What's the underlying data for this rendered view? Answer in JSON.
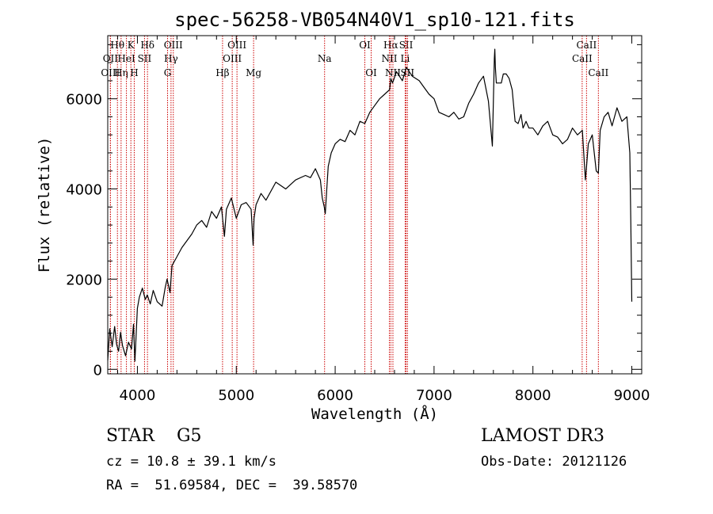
{
  "chart_data": {
    "type": "line",
    "title": "spec-56258-VB054N40V1_sp10-121.fits",
    "xlabel": "Wavelength (Å)",
    "ylabel": "Flux (relative)",
    "xlim": [
      3700,
      9100
    ],
    "ylim": [
      -100,
      7400
    ],
    "xticks": [
      4000,
      5000,
      6000,
      7000,
      8000,
      9000
    ],
    "xtick_labels": [
      "4000",
      "5000",
      "6000",
      "7000",
      "8000",
      "9000"
    ],
    "yticks": [
      0,
      2000,
      4000,
      6000
    ],
    "ytick_labels": [
      "0",
      "2000",
      "4000",
      "6000"
    ],
    "series": [
      {
        "name": "flux",
        "x": [
          3700,
          3720,
          3745,
          3770,
          3790,
          3810,
          3830,
          3850,
          3880,
          3910,
          3940,
          3960,
          3975,
          4000,
          4020,
          4050,
          4080,
          4100,
          4130,
          4160,
          4200,
          4250,
          4280,
          4300,
          4330,
          4350,
          4400,
          4450,
          4500,
          4550,
          4600,
          4650,
          4700,
          4750,
          4800,
          4850,
          4880,
          4900,
          4950,
          5000,
          5050,
          5100,
          5150,
          5170,
          5180,
          5200,
          5250,
          5300,
          5400,
          5500,
          5600,
          5700,
          5750,
          5800,
          5850,
          5870,
          5890,
          5900,
          5915,
          5930,
          5960,
          6000,
          6050,
          6100,
          6150,
          6200,
          6250,
          6300,
          6350,
          6400,
          6450,
          6500,
          6550,
          6563,
          6580,
          6620,
          6680,
          6720,
          6780,
          6850,
          6900,
          6950,
          7000,
          7050,
          7100,
          7150,
          7200,
          7250,
          7300,
          7350,
          7400,
          7450,
          7500,
          7550,
          7590,
          7610,
          7615,
          7620,
          7630,
          7650,
          7680,
          7700,
          7730,
          7760,
          7790,
          7820,
          7850,
          7880,
          7900,
          7930,
          7960,
          8000,
          8050,
          8100,
          8150,
          8200,
          8250,
          8300,
          8350,
          8400,
          8450,
          8500,
          8530,
          8542,
          8560,
          8600,
          8640,
          8662,
          8680,
          8720,
          8760,
          8800,
          8850,
          8900,
          8950,
          8980,
          8990,
          9000
        ],
        "y": [
          200,
          900,
          500,
          950,
          550,
          400,
          820,
          520,
          300,
          600,
          450,
          1000,
          180,
          1350,
          1600,
          1800,
          1550,
          1650,
          1450,
          1750,
          1500,
          1400,
          1800,
          2000,
          1700,
          2300,
          2500,
          2700,
          2850,
          3000,
          3200,
          3300,
          3150,
          3500,
          3350,
          3600,
          2950,
          3550,
          3800,
          3350,
          3650,
          3700,
          3550,
          2750,
          3350,
          3650,
          3900,
          3750,
          4150,
          4000,
          4200,
          4300,
          4250,
          4450,
          4200,
          3800,
          3600,
          3450,
          4000,
          4500,
          4800,
          5000,
          5100,
          5050,
          5300,
          5200,
          5500,
          5450,
          5700,
          5850,
          6000,
          6100,
          6200,
          6450,
          6350,
          6600,
          6400,
          6700,
          6500,
          6400,
          6250,
          6100,
          6000,
          5700,
          5650,
          5600,
          5700,
          5550,
          5600,
          5900,
          6100,
          6350,
          6500,
          5950,
          4950,
          6900,
          7100,
          6700,
          6350,
          6350,
          6350,
          6550,
          6550,
          6450,
          6200,
          5500,
          5450,
          5650,
          5350,
          5500,
          5350,
          5350,
          5200,
          5400,
          5500,
          5200,
          5150,
          5000,
          5100,
          5350,
          5200,
          5300,
          4200,
          4500,
          5000,
          5200,
          4400,
          4350,
          5300,
          5600,
          5700,
          5400,
          5800,
          5500,
          5600,
          4800,
          3200,
          1500
        ],
        "color": "#000000"
      }
    ],
    "line_markers": [
      {
        "label": "Hθ",
        "wavelength": 3798,
        "row": 0
      },
      {
        "label": "OII",
        "wavelength": 3727,
        "row": 1
      },
      {
        "label": "OIII",
        "wavelength": 3727,
        "row": 2
      },
      {
        "label": "Hη",
        "wavelength": 3835,
        "row": 2
      },
      {
        "label": "HeI",
        "wavelength": 3889,
        "row": 1
      },
      {
        "label": "K",
        "wavelength": 3934,
        "row": 0
      },
      {
        "label": "H",
        "wavelength": 3968,
        "row": 2
      },
      {
        "label": "SII",
        "wavelength": 4072,
        "row": 1
      },
      {
        "label": "Hδ",
        "wavelength": 4102,
        "row": 0
      },
      {
        "label": "OIII",
        "wavelength": 4363,
        "row": 0
      },
      {
        "label": "Hγ",
        "wavelength": 4340,
        "row": 1
      },
      {
        "label": "G",
        "wavelength": 4305,
        "row": 2
      },
      {
        "label": "Hβ",
        "wavelength": 4861,
        "row": 2
      },
      {
        "label": "OIII",
        "wavelength": 5007,
        "row": 0
      },
      {
        "label": "OIII",
        "wavelength": 4959,
        "row": 1
      },
      {
        "label": "Mg",
        "wavelength": 5175,
        "row": 2
      },
      {
        "label": "Na",
        "wavelength": 5893,
        "row": 1
      },
      {
        "label": "OI",
        "wavelength": 6300,
        "row": 0
      },
      {
        "label": "OI",
        "wavelength": 6364,
        "row": 2
      },
      {
        "label": "Hα",
        "wavelength": 6563,
        "row": 0
      },
      {
        "label": "NII",
        "wavelength": 6548,
        "row": 1
      },
      {
        "label": "NII",
        "wavelength": 6584,
        "row": 2
      },
      {
        "label": "SII",
        "wavelength": 6717,
        "row": 0
      },
      {
        "label": "Li",
        "wavelength": 6708,
        "row": 1
      },
      {
        "label": "SII",
        "wavelength": 6731,
        "row": 2
      },
      {
        "label": "CaII",
        "wavelength": 8542,
        "row": 0
      },
      {
        "label": "CaII",
        "wavelength": 8498,
        "row": 1
      },
      {
        "label": "CaII",
        "wavelength": 8662,
        "row": 2
      }
    ],
    "marker_color": "#cc0000"
  },
  "footer": {
    "class_line": "STAR    G5",
    "cz_line": "cz = 10.8 ± 39.1 km/s",
    "radec_line": "RA =  51.69584, DEC =  39.58570",
    "survey": "LAMOST DR3",
    "obs_date": "Obs-Date: 20121126"
  }
}
